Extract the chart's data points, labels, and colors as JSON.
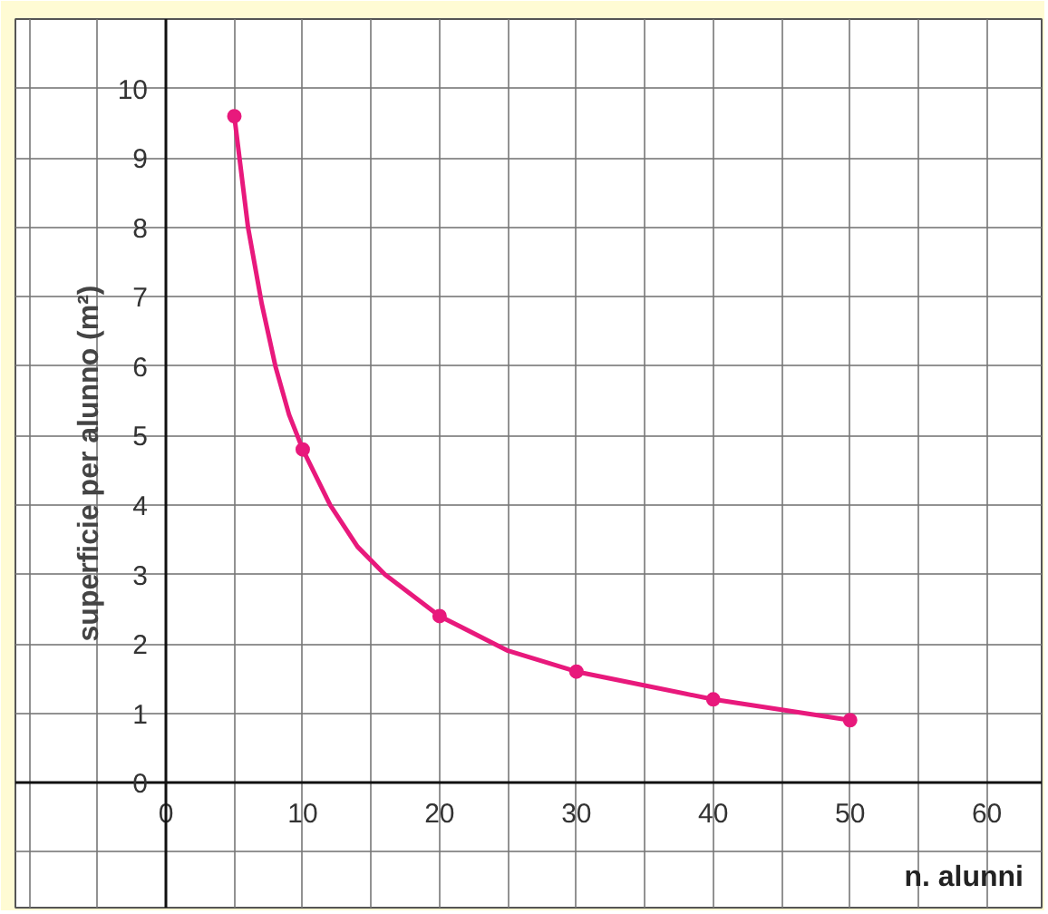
{
  "chart_data": {
    "type": "line",
    "xlabel": "n. alunni",
    "ylabel": "superficie per alunno (m²)",
    "x": [
      5,
      10,
      20,
      30,
      40,
      50
    ],
    "series": [
      {
        "marker": "none",
        "color": "#e8197c",
        "x": [
          5,
          6,
          7,
          8,
          9,
          10,
          12,
          14,
          16,
          18,
          20,
          25,
          30,
          35,
          40,
          45,
          50
        ],
        "values": [
          9.6,
          8.0,
          6.9,
          6.0,
          5.3,
          4.8,
          4.0,
          3.4,
          3.0,
          2.7,
          2.4,
          1.9,
          1.6,
          1.4,
          1.2,
          1.05,
          0.9
        ]
      },
      {
        "type": "scatter",
        "color": "#e8197c",
        "values": [
          9.6,
          4.8,
          2.4,
          1.6,
          1.2,
          0.9
        ]
      }
    ],
    "xlim": [
      -11,
      64
    ],
    "ylim": [
      -1.8,
      11
    ],
    "xticks": [
      {
        "value": -10,
        "label": null
      },
      {
        "value": -5,
        "label": null
      },
      0,
      {
        "value": 5,
        "label": null
      },
      10,
      {
        "value": 15,
        "label": null
      },
      20,
      {
        "value": 25,
        "label": null
      },
      30,
      {
        "value": 35,
        "label": null
      },
      40,
      {
        "value": 45,
        "label": null
      },
      50,
      {
        "value": 55,
        "label": null
      },
      60
    ],
    "yticks": [
      {
        "value": -1,
        "label": null
      },
      0,
      1,
      2,
      3,
      4,
      5,
      6,
      7,
      8,
      9,
      10
    ],
    "grid": true,
    "marker": "circle",
    "line_style": "solid"
  }
}
